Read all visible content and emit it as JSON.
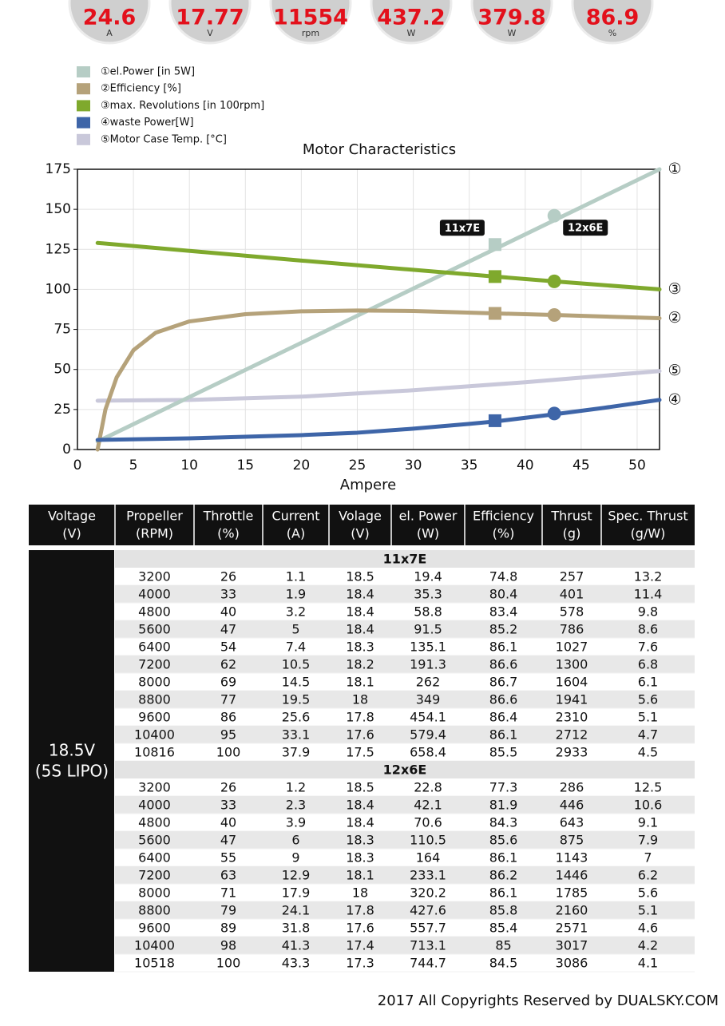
{
  "gauges": [
    {
      "value": 24.6,
      "unit": "A"
    },
    {
      "value": 17.77,
      "unit": "V"
    },
    {
      "value": 11554,
      "unit": "rpm"
    },
    {
      "value": 437.2,
      "unit": "W"
    },
    {
      "value": 379.8,
      "unit": "W"
    },
    {
      "value": 86.9,
      "unit": "%"
    }
  ],
  "chart_data": {
    "type": "line",
    "title": "Motor Characteristics",
    "x_label": "Ampere",
    "xlim": [
      0,
      52
    ],
    "xticks": [
      0,
      5,
      10,
      15,
      20,
      25,
      30,
      35,
      40,
      45,
      50
    ],
    "ylim": [
      0,
      175
    ],
    "yticks": [
      0,
      25,
      50,
      75,
      100,
      125,
      150,
      175
    ],
    "grid": true,
    "markers": [
      {
        "label": "11x7E",
        "x": 37.3,
        "shape": "square"
      },
      {
        "label": "12x6E",
        "x": 42.6,
        "shape": "circle"
      }
    ],
    "series": [
      {
        "name": "①el.Power [in 5W]",
        "end_label": "①",
        "color": "#b6cdc5",
        "x": [
          1.8,
          52
        ],
        "values": [
          5,
          175
        ],
        "marker_values": [
          128,
          146
        ]
      },
      {
        "name": "②Efficiency [%]",
        "end_label": "②",
        "color": "#b5a27a",
        "x": [
          1.8,
          2.5,
          3.5,
          5,
          7,
          10,
          15,
          20,
          25,
          30,
          37.3,
          42.6,
          52
        ],
        "values": [
          0,
          25,
          45,
          62,
          73,
          80,
          84.5,
          86.3,
          86.8,
          86.5,
          85,
          84,
          82
        ],
        "marker_values": [
          85,
          84
        ]
      },
      {
        "name": "③max. Revolutions [in 100rpm]",
        "end_label": "③",
        "color": "#7fa92d",
        "x": [
          1.8,
          20,
          37.3,
          42.6,
          52
        ],
        "values": [
          129,
          118,
          108,
          105,
          100
        ],
        "marker_values": [
          108,
          105
        ]
      },
      {
        "name": "④waste Power[W]",
        "end_label": "④",
        "color": "#3e65a8",
        "x": [
          1.8,
          10,
          20,
          25,
          30,
          35,
          37.3,
          42.6,
          47,
          52
        ],
        "values": [
          6,
          7,
          9,
          10.5,
          13,
          16,
          17.5,
          22,
          26,
          31
        ],
        "marker_values": [
          18,
          22.5
        ]
      },
      {
        "name": "⑤Motor Case Temp. [°C]",
        "end_label": "⑤",
        "color": "#c9c8da",
        "x": [
          1.8,
          10,
          20,
          25,
          30,
          35,
          40,
          46,
          52
        ],
        "values": [
          30.5,
          31,
          33,
          35,
          37,
          39.5,
          42,
          45.5,
          49
        ]
      }
    ]
  },
  "table": {
    "header": [
      [
        "Voltage",
        "(V)"
      ],
      [
        "Propeller",
        "(RPM)"
      ],
      [
        "Throttle",
        "(%)"
      ],
      [
        "Current",
        "(A)"
      ],
      [
        "Volage",
        "(V)"
      ],
      [
        "el. Power",
        "(W)"
      ],
      [
        "Efficiency",
        "(%)"
      ],
      [
        "Thrust",
        "(g)"
      ],
      [
        "Spec. Thrust",
        "(g/W)"
      ]
    ],
    "voltage": [
      "18.5V",
      "(5S LIPO)"
    ],
    "groups": [
      {
        "name": "11x7E",
        "rows": [
          [
            3200,
            26,
            1.1,
            18.5,
            19.4,
            74.8,
            257,
            13.2
          ],
          [
            4000,
            33,
            1.9,
            18.4,
            35.3,
            80.4,
            401,
            11.4
          ],
          [
            4800,
            40,
            3.2,
            18.4,
            58.8,
            83.4,
            578,
            9.8
          ],
          [
            5600,
            47,
            5,
            18.4,
            91.5,
            85.2,
            786,
            8.6
          ],
          [
            6400,
            54,
            7.4,
            18.3,
            135.1,
            86.1,
            1027,
            7.6
          ],
          [
            7200,
            62,
            10.5,
            18.2,
            191.3,
            86.6,
            1300,
            6.8
          ],
          [
            8000,
            69,
            14.5,
            18.1,
            262,
            86.7,
            1604,
            6.1
          ],
          [
            8800,
            77,
            19.5,
            18,
            349,
            86.6,
            1941,
            5.6
          ],
          [
            9600,
            86,
            25.6,
            17.8,
            454.1,
            86.4,
            2310,
            5.1
          ],
          [
            10400,
            95,
            33.1,
            17.6,
            579.4,
            86.1,
            2712,
            4.7
          ],
          [
            10816,
            100,
            37.9,
            17.5,
            658.4,
            85.5,
            2933,
            4.5
          ]
        ]
      },
      {
        "name": "12x6E",
        "rows": [
          [
            3200,
            26,
            1.2,
            18.5,
            22.8,
            77.3,
            286,
            12.5
          ],
          [
            4000,
            33,
            2.3,
            18.4,
            42.1,
            81.9,
            446,
            10.6
          ],
          [
            4800,
            40,
            3.9,
            18.4,
            70.6,
            84.3,
            643,
            9.1
          ],
          [
            5600,
            47,
            6,
            18.3,
            110.5,
            85.6,
            875,
            7.9
          ],
          [
            6400,
            55,
            9,
            18.3,
            164,
            86.1,
            1143,
            7
          ],
          [
            7200,
            63,
            12.9,
            18.1,
            233.1,
            86.2,
            1446,
            6.2
          ],
          [
            8000,
            71,
            17.9,
            18,
            320.2,
            86.1,
            1785,
            5.6
          ],
          [
            8800,
            79,
            24.1,
            17.8,
            427.6,
            85.8,
            2160,
            5.1
          ],
          [
            9600,
            89,
            31.8,
            17.6,
            557.7,
            85.4,
            2571,
            4.6
          ],
          [
            10400,
            98,
            41.3,
            17.4,
            713.1,
            85,
            3017,
            4.2
          ],
          [
            10518,
            100,
            43.3,
            17.3,
            744.7,
            84.5,
            3086,
            4.1
          ]
        ]
      }
    ]
  },
  "footer": "2017 All Copyrights Reserved by DUALSKY.COM"
}
